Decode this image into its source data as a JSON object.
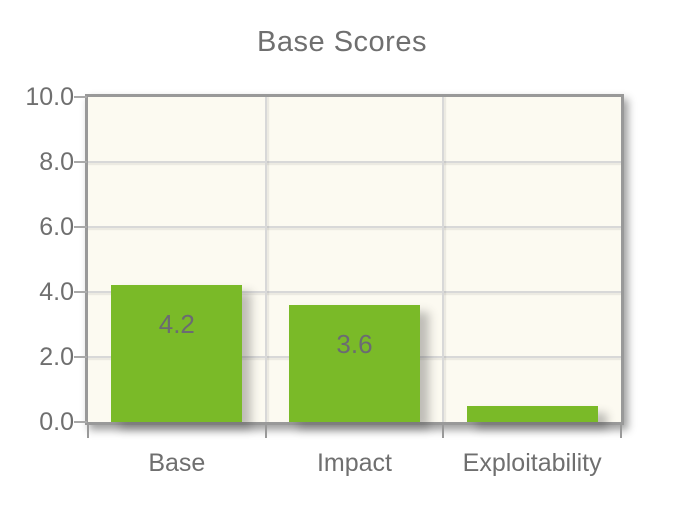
{
  "chart_data": {
    "type": "bar",
    "title": "Base Scores",
    "categories": [
      "Base",
      "Impact",
      "Exploitability"
    ],
    "values": [
      4.2,
      3.6,
      0.5
    ],
    "point_labels": [
      "4.2",
      "3.6",
      ""
    ],
    "xlabel": "",
    "ylabel": "",
    "ylim": [
      0,
      10
    ],
    "ytick_labels": [
      "10.0",
      "8.0",
      "6.0",
      "4.0",
      "2.0",
      "0.0"
    ],
    "grid": true,
    "legend_position": "none",
    "colors": {
      "bar": "#7ABA28",
      "plot_background": "#FCFAF1",
      "gridline": "#D8D8D8",
      "border": "#999999",
      "tick": "#A9A9A9",
      "text": "#6F6F6F",
      "bar_label_text": "#6B6B72",
      "page_background": "#FFFFFF"
    }
  }
}
